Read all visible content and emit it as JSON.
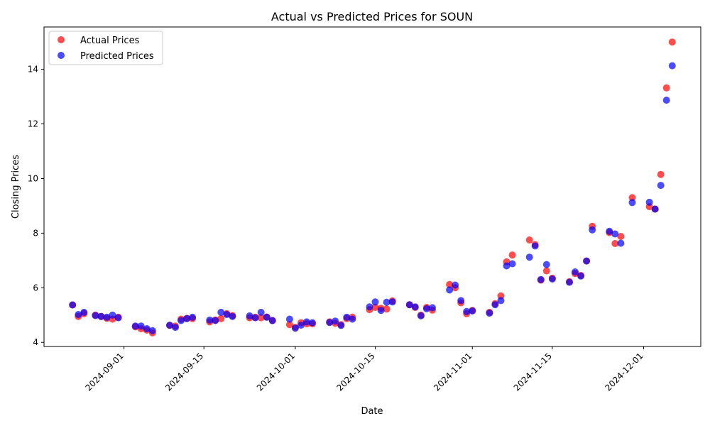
{
  "chart_data": {
    "type": "scatter",
    "title": "Actual vs Predicted Prices for SOUN",
    "xlabel": "Date",
    "ylabel": "Closing Prices",
    "x_ticks": [
      "2024-09-01",
      "2024-09-15",
      "2024-10-01",
      "2024-10-15",
      "2024-11-01",
      "2024-11-15",
      "2024-12-01"
    ],
    "y_ticks": [
      "4",
      "6",
      "8",
      "10",
      "12",
      "14"
    ],
    "xlim": [
      "2024-08-18",
      "2024-12-11"
    ],
    "ylim": [
      3.85,
      15.55
    ],
    "grid": false,
    "legend_position": "top-left",
    "series": [
      {
        "name": "Actual Prices",
        "color": "#ff0000",
        "points": [
          [
            "2024-08-23",
            5.37
          ],
          [
            "2024-08-24",
            4.95
          ],
          [
            "2024-08-25",
            5.05
          ],
          [
            "2024-08-27",
            5.0
          ],
          [
            "2024-08-28",
            4.95
          ],
          [
            "2024-08-29",
            4.88
          ],
          [
            "2024-08-30",
            4.85
          ],
          [
            "2024-08-31",
            4.92
          ],
          [
            "2024-09-03",
            4.57
          ],
          [
            "2024-09-04",
            4.5
          ],
          [
            "2024-09-05",
            4.45
          ],
          [
            "2024-09-06",
            4.35
          ],
          [
            "2024-09-09",
            4.62
          ],
          [
            "2024-09-10",
            4.6
          ],
          [
            "2024-09-11",
            4.85
          ],
          [
            "2024-09-12",
            4.88
          ],
          [
            "2024-09-13",
            4.87
          ],
          [
            "2024-09-16",
            4.75
          ],
          [
            "2024-09-17",
            4.82
          ],
          [
            "2024-09-18",
            4.87
          ],
          [
            "2024-09-19",
            5.05
          ],
          [
            "2024-09-20",
            4.98
          ],
          [
            "2024-09-23",
            4.9
          ],
          [
            "2024-09-24",
            4.92
          ],
          [
            "2024-09-25",
            4.9
          ],
          [
            "2024-09-26",
            4.93
          ],
          [
            "2024-09-27",
            4.8
          ],
          [
            "2024-09-30",
            4.65
          ],
          [
            "2024-10-01",
            4.55
          ],
          [
            "2024-10-02",
            4.72
          ],
          [
            "2024-10-03",
            4.68
          ],
          [
            "2024-10-04",
            4.68
          ],
          [
            "2024-10-07",
            4.75
          ],
          [
            "2024-10-08",
            4.7
          ],
          [
            "2024-10-09",
            4.65
          ],
          [
            "2024-10-10",
            4.87
          ],
          [
            "2024-10-11",
            4.92
          ],
          [
            "2024-10-14",
            5.2
          ],
          [
            "2024-10-15",
            5.28
          ],
          [
            "2024-10-16",
            5.25
          ],
          [
            "2024-10-17",
            5.22
          ],
          [
            "2024-10-18",
            5.52
          ],
          [
            "2024-10-21",
            5.38
          ],
          [
            "2024-10-22",
            5.28
          ],
          [
            "2024-10-23",
            5.0
          ],
          [
            "2024-10-24",
            5.28
          ],
          [
            "2024-10-25",
            5.18
          ],
          [
            "2024-10-28",
            6.12
          ],
          [
            "2024-10-29",
            6.0
          ],
          [
            "2024-10-30",
            5.45
          ],
          [
            "2024-10-31",
            5.05
          ],
          [
            "2024-11-01",
            5.17
          ],
          [
            "2024-11-04",
            5.1
          ],
          [
            "2024-11-05",
            5.42
          ],
          [
            "2024-11-06",
            5.7
          ],
          [
            "2024-11-07",
            6.95
          ],
          [
            "2024-11-08",
            7.2
          ],
          [
            "2024-11-11",
            7.75
          ],
          [
            "2024-11-12",
            7.58
          ],
          [
            "2024-11-13",
            6.28
          ],
          [
            "2024-11-14",
            6.62
          ],
          [
            "2024-11-15",
            6.35
          ],
          [
            "2024-11-18",
            6.22
          ],
          [
            "2024-11-19",
            6.52
          ],
          [
            "2024-11-20",
            6.45
          ],
          [
            "2024-11-21",
            6.98
          ],
          [
            "2024-11-22",
            8.25
          ],
          [
            "2024-11-25",
            8.02
          ],
          [
            "2024-11-26",
            7.62
          ],
          [
            "2024-11-27",
            7.88
          ],
          [
            "2024-11-29",
            9.3
          ],
          [
            "2024-12-02",
            8.97
          ],
          [
            "2024-12-03",
            8.88
          ],
          [
            "2024-12-04",
            10.15
          ],
          [
            "2024-12-05",
            13.32
          ],
          [
            "2024-12-06",
            15.0
          ]
        ]
      },
      {
        "name": "Predicted Prices",
        "color": "#0000ff",
        "points": [
          [
            "2024-08-23",
            5.37
          ],
          [
            "2024-08-24",
            5.02
          ],
          [
            "2024-08-25",
            5.1
          ],
          [
            "2024-08-27",
            4.98
          ],
          [
            "2024-08-28",
            4.95
          ],
          [
            "2024-08-29",
            4.92
          ],
          [
            "2024-08-30",
            5.0
          ],
          [
            "2024-08-31",
            4.9
          ],
          [
            "2024-09-03",
            4.6
          ],
          [
            "2024-09-04",
            4.6
          ],
          [
            "2024-09-05",
            4.5
          ],
          [
            "2024-09-06",
            4.43
          ],
          [
            "2024-09-09",
            4.63
          ],
          [
            "2024-09-10",
            4.55
          ],
          [
            "2024-09-11",
            4.8
          ],
          [
            "2024-09-12",
            4.87
          ],
          [
            "2024-09-13",
            4.92
          ],
          [
            "2024-09-16",
            4.82
          ],
          [
            "2024-09-17",
            4.8
          ],
          [
            "2024-09-18",
            5.1
          ],
          [
            "2024-09-19",
            5.02
          ],
          [
            "2024-09-20",
            4.95
          ],
          [
            "2024-09-23",
            4.97
          ],
          [
            "2024-09-24",
            4.9
          ],
          [
            "2024-09-25",
            5.1
          ],
          [
            "2024-09-26",
            4.92
          ],
          [
            "2024-09-27",
            4.8
          ],
          [
            "2024-09-30",
            4.85
          ],
          [
            "2024-10-01",
            4.52
          ],
          [
            "2024-10-02",
            4.63
          ],
          [
            "2024-10-03",
            4.75
          ],
          [
            "2024-10-04",
            4.72
          ],
          [
            "2024-10-07",
            4.73
          ],
          [
            "2024-10-08",
            4.78
          ],
          [
            "2024-10-09",
            4.62
          ],
          [
            "2024-10-10",
            4.92
          ],
          [
            "2024-10-11",
            4.85
          ],
          [
            "2024-10-14",
            5.3
          ],
          [
            "2024-10-15",
            5.48
          ],
          [
            "2024-10-16",
            5.17
          ],
          [
            "2024-10-17",
            5.47
          ],
          [
            "2024-10-18",
            5.48
          ],
          [
            "2024-10-21",
            5.38
          ],
          [
            "2024-10-22",
            5.3
          ],
          [
            "2024-10-23",
            4.97
          ],
          [
            "2024-10-24",
            5.23
          ],
          [
            "2024-10-25",
            5.27
          ],
          [
            "2024-10-28",
            5.92
          ],
          [
            "2024-10-29",
            6.1
          ],
          [
            "2024-10-30",
            5.53
          ],
          [
            "2024-10-31",
            5.13
          ],
          [
            "2024-11-01",
            5.15
          ],
          [
            "2024-11-04",
            5.07
          ],
          [
            "2024-11-05",
            5.38
          ],
          [
            "2024-11-06",
            5.53
          ],
          [
            "2024-11-07",
            6.8
          ],
          [
            "2024-11-08",
            6.88
          ],
          [
            "2024-11-11",
            7.12
          ],
          [
            "2024-11-12",
            7.53
          ],
          [
            "2024-11-13",
            6.3
          ],
          [
            "2024-11-14",
            6.85
          ],
          [
            "2024-11-15",
            6.32
          ],
          [
            "2024-11-18",
            6.2
          ],
          [
            "2024-11-19",
            6.58
          ],
          [
            "2024-11-20",
            6.43
          ],
          [
            "2024-11-21",
            6.98
          ],
          [
            "2024-11-22",
            8.12
          ],
          [
            "2024-11-25",
            8.07
          ],
          [
            "2024-11-26",
            7.97
          ],
          [
            "2024-11-27",
            7.63
          ],
          [
            "2024-11-29",
            9.12
          ],
          [
            "2024-12-02",
            9.13
          ],
          [
            "2024-12-03",
            8.88
          ],
          [
            "2024-12-04",
            9.75
          ],
          [
            "2024-12-05",
            12.87
          ],
          [
            "2024-12-06",
            14.13
          ]
        ]
      }
    ]
  }
}
